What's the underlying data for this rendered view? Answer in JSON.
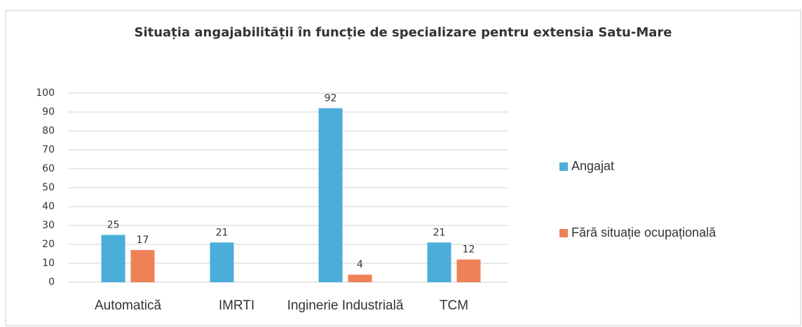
{
  "chart_data": {
    "type": "bar",
    "title": "Situația angajabilității în funcție de specializare pentru extensia Satu-Mare",
    "categories": [
      "Automatică",
      "IMRTI",
      "Inginerie Industrială",
      "TCM"
    ],
    "series": [
      {
        "name": "Angajat",
        "color": "#4badd9",
        "values": [
          25,
          21,
          92,
          21
        ]
      },
      {
        "name": "Fără situație ocupațională",
        "color": "#ef8157",
        "values": [
          17,
          null,
          4,
          12
        ]
      }
    ],
    "ylim": [
      0,
      100
    ],
    "yticks": [
      0,
      10,
      20,
      30,
      40,
      50,
      60,
      70,
      80,
      90,
      100
    ],
    "grid": true,
    "legend": "right"
  }
}
